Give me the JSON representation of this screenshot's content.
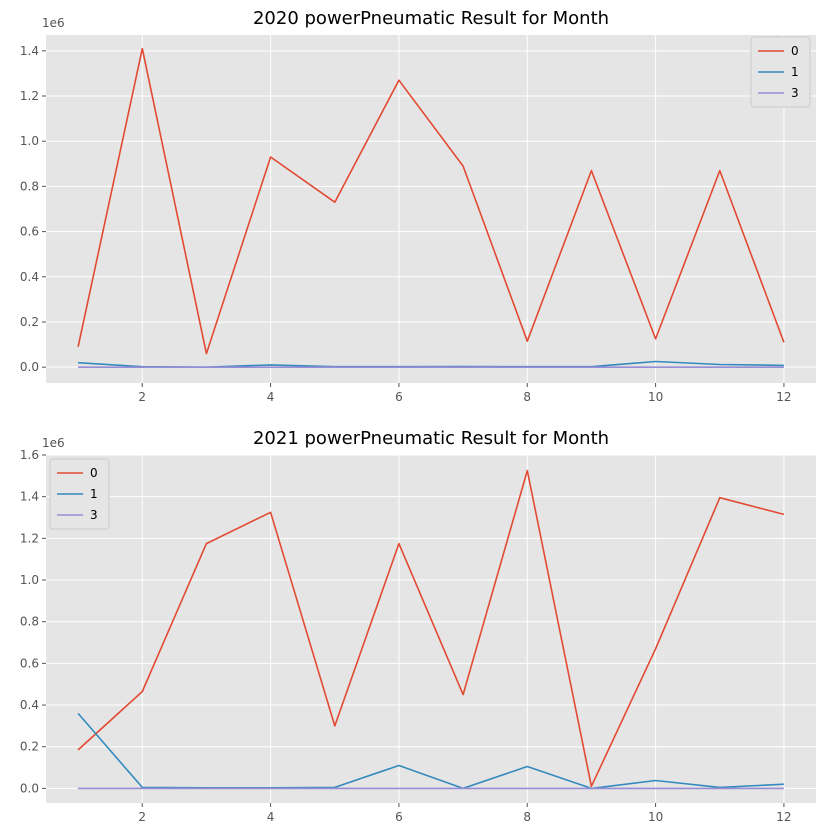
{
  "chart_data": [
    {
      "type": "line",
      "title": "2020 powerPneumatic Result for Month",
      "offset_label": "1e6",
      "x": [
        1,
        2,
        3,
        4,
        5,
        6,
        7,
        8,
        9,
        10,
        11,
        12
      ],
      "xlim": [
        0.5,
        12.5
      ],
      "ylim": [
        -70000,
        1470000
      ],
      "xticks": [
        2,
        4,
        6,
        8,
        10,
        12
      ],
      "yticks": [
        0,
        200000,
        400000,
        600000,
        800000,
        1000000,
        1200000,
        1400000
      ],
      "yticklabels": [
        "0.0",
        "0.2",
        "0.4",
        "0.6",
        "0.8",
        "1.0",
        "1.2",
        "1.4"
      ],
      "grid": true,
      "legend_position": "top-right",
      "series": [
        {
          "name": "0",
          "color": "#E24A33",
          "values": [
            90000,
            1410000,
            60000,
            930000,
            730000,
            1270000,
            890000,
            115000,
            870000,
            125000,
            870000,
            110000
          ]
        },
        {
          "name": "1",
          "color": "#348ABD",
          "values": [
            20000,
            2000,
            0,
            10000,
            2000,
            2000,
            3000,
            2000,
            2000,
            25000,
            12000,
            8000
          ]
        },
        {
          "name": "3",
          "color": "#988ED5",
          "values": [
            0,
            0,
            0,
            0,
            0,
            0,
            0,
            0,
            0,
            0,
            0,
            0
          ]
        }
      ]
    },
    {
      "type": "line",
      "title": "2021 powerPneumatic Result for Month",
      "offset_label": "1e6",
      "x": [
        1,
        2,
        3,
        4,
        5,
        6,
        7,
        8,
        9,
        10,
        11,
        12
      ],
      "xlim": [
        0.5,
        12.5
      ],
      "ylim": [
        -70000,
        1600000
      ],
      "xticks": [
        2,
        4,
        6,
        8,
        10,
        12
      ],
      "yticks": [
        0,
        200000,
        400000,
        600000,
        800000,
        1000000,
        1200000,
        1400000,
        1600000
      ],
      "yticklabels": [
        "0.0",
        "0.2",
        "0.4",
        "0.6",
        "0.8",
        "1.0",
        "1.2",
        "1.4",
        "1.6"
      ],
      "grid": true,
      "legend_position": "top-left",
      "series": [
        {
          "name": "0",
          "color": "#E24A33",
          "values": [
            185000,
            465000,
            1175000,
            1325000,
            300000,
            1175000,
            450000,
            1525000,
            10000,
            670000,
            1395000,
            1315000
          ]
        },
        {
          "name": "1",
          "color": "#348ABD",
          "values": [
            360000,
            5000,
            3000,
            3000,
            5000,
            110000,
            0,
            105000,
            0,
            38000,
            5000,
            20000
          ]
        },
        {
          "name": "3",
          "color": "#988ED5",
          "values": [
            0,
            0,
            0,
            0,
            0,
            0,
            0,
            0,
            0,
            0,
            0,
            0
          ]
        }
      ]
    }
  ]
}
